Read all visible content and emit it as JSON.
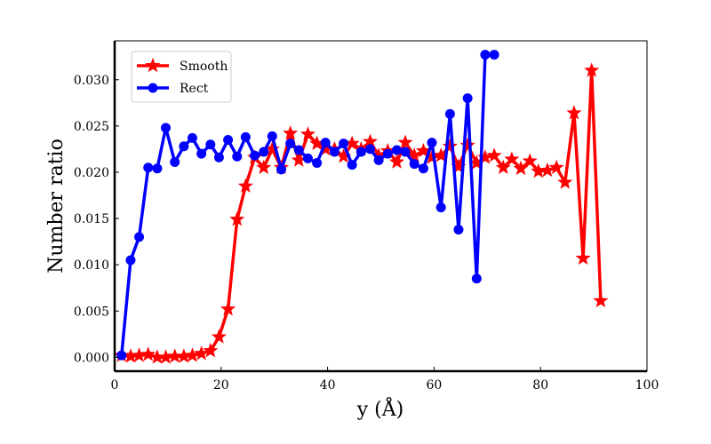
{
  "chart_data": {
    "type": "line",
    "xlabel": "y (Å)",
    "ylabel": "Number ratio",
    "xlim": [
      0,
      100
    ],
    "ylim": [
      -0.0015,
      0.0342
    ],
    "xticks": [
      0,
      20,
      40,
      60,
      80,
      100
    ],
    "xtick_labels": [
      "0",
      "20",
      "40",
      "60",
      "80",
      "100"
    ],
    "yticks": [
      0,
      0.005,
      0.01,
      0.015,
      0.02,
      0.025,
      0.03
    ],
    "ytick_labels": [
      "0.000",
      "0.005",
      "0.010",
      "0.015",
      "0.020",
      "0.025",
      "0.030"
    ],
    "grid": false,
    "legend_position": "top-left",
    "series": [
      {
        "name": "Smooth",
        "color": "#ff0000",
        "marker": "star",
        "x": [
          1.3,
          3.0,
          4.6,
          6.3,
          8.0,
          9.6,
          11.3,
          13.0,
          14.6,
          16.3,
          18.0,
          19.6,
          21.3,
          23.0,
          24.6,
          26.3,
          28.0,
          29.6,
          31.3,
          33.0,
          34.6,
          36.3,
          38.0,
          39.6,
          41.3,
          43.0,
          44.6,
          46.3,
          48.0,
          49.6,
          51.3,
          53.0,
          54.6,
          56.3,
          58.0,
          59.6,
          61.3,
          63.0,
          64.6,
          66.3,
          68.0,
          69.6,
          71.3,
          73.0,
          74.6,
          76.3,
          78.0,
          79.6,
          81.3,
          83.0,
          84.6,
          86.3,
          88.0,
          89.6,
          91.3
        ],
        "y": [
          0.0002,
          0.0001,
          0.0002,
          0.0003,
          0.0,
          0.0,
          0.0001,
          0.0001,
          0.0002,
          0.0004,
          0.0007,
          0.0022,
          0.0052,
          0.0149,
          0.0185,
          0.0216,
          0.0205,
          0.0225,
          0.0205,
          0.0242,
          0.0213,
          0.0241,
          0.0231,
          0.0225,
          0.0225,
          0.0217,
          0.0231,
          0.0225,
          0.0233,
          0.0218,
          0.0223,
          0.0211,
          0.0232,
          0.0218,
          0.0223,
          0.0216,
          0.0218,
          0.0228,
          0.0206,
          0.0229,
          0.021,
          0.0216,
          0.0218,
          0.0205,
          0.0214,
          0.0204,
          0.0212,
          0.0201,
          0.0202,
          0.0205,
          0.0189,
          0.0264,
          0.0107,
          0.031,
          0.0061
        ]
      },
      {
        "name": "Rect",
        "color": "#0000ff",
        "marker": "circle",
        "x": [
          1.3,
          3.0,
          4.6,
          6.3,
          8.0,
          9.6,
          11.3,
          13.0,
          14.6,
          16.3,
          18.0,
          19.6,
          21.3,
          23.0,
          24.6,
          26.3,
          28.0,
          29.6,
          31.3,
          33.0,
          34.6,
          36.3,
          38.0,
          39.6,
          41.3,
          43.0,
          44.6,
          46.3,
          48.0,
          49.6,
          51.3,
          53.0,
          54.6,
          56.3,
          58.0,
          59.6,
          61.3,
          63.0,
          64.6,
          66.3,
          68.0,
          69.6,
          71.3
        ],
        "y": [
          0.0002,
          0.0105,
          0.013,
          0.0205,
          0.0204,
          0.0248,
          0.0211,
          0.0228,
          0.0237,
          0.022,
          0.023,
          0.0216,
          0.0235,
          0.0217,
          0.0238,
          0.0218,
          0.0222,
          0.0239,
          0.0203,
          0.0231,
          0.0224,
          0.0215,
          0.021,
          0.0232,
          0.0222,
          0.0231,
          0.0208,
          0.0222,
          0.0225,
          0.0213,
          0.022,
          0.0224,
          0.0222,
          0.0209,
          0.0204,
          0.0232,
          0.0162,
          0.0263,
          0.0138,
          0.028,
          0.0085,
          0.0327,
          0.0327
        ]
      }
    ]
  }
}
